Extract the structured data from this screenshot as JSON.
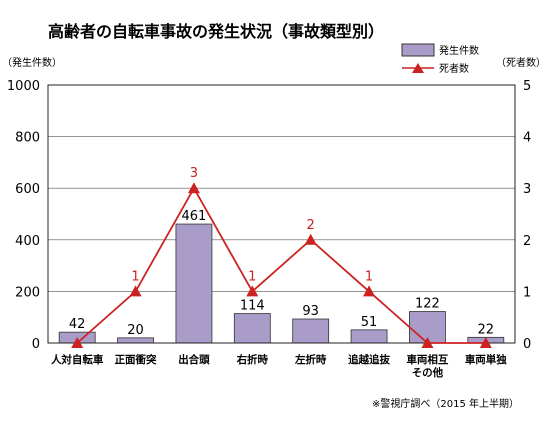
{
  "chart_data": {
    "type": "bar+line",
    "title": "高齢者の自転車事故の発生状況（事故類型別）",
    "left_axis_label": "（発生件数）",
    "right_axis_label": "（死者数）",
    "source": "※警視庁調べ（2015 年上半期）",
    "categories": [
      "人対自転車",
      "正面衝突",
      "出合頭",
      "右折時",
      "左折時",
      "追越追抜",
      [
        "車両相互",
        "その他"
      ],
      "車両単独"
    ],
    "bar_series": {
      "name": "発生件数",
      "values": [
        42,
        20,
        461,
        114,
        93,
        51,
        122,
        22
      ],
      "color": "#a99cc8"
    },
    "line_series": {
      "name": "死者数",
      "values": [
        0,
        1,
        3,
        1,
        2,
        1,
        0,
        0
      ],
      "labels": [
        "",
        "1",
        "3",
        "1",
        "2",
        "1",
        "",
        ""
      ],
      "color": "#cc2222"
    },
    "y_left_ticks": [
      "0",
      "200",
      "400",
      "600",
      "800",
      "1000"
    ],
    "y_right_ticks": [
      "0",
      "1",
      "2",
      "3",
      "4",
      "5"
    ],
    "ylim_left": [
      0,
      1000
    ],
    "ylim_right": [
      0,
      5
    ],
    "grid": true,
    "legend_position": "top-right"
  }
}
